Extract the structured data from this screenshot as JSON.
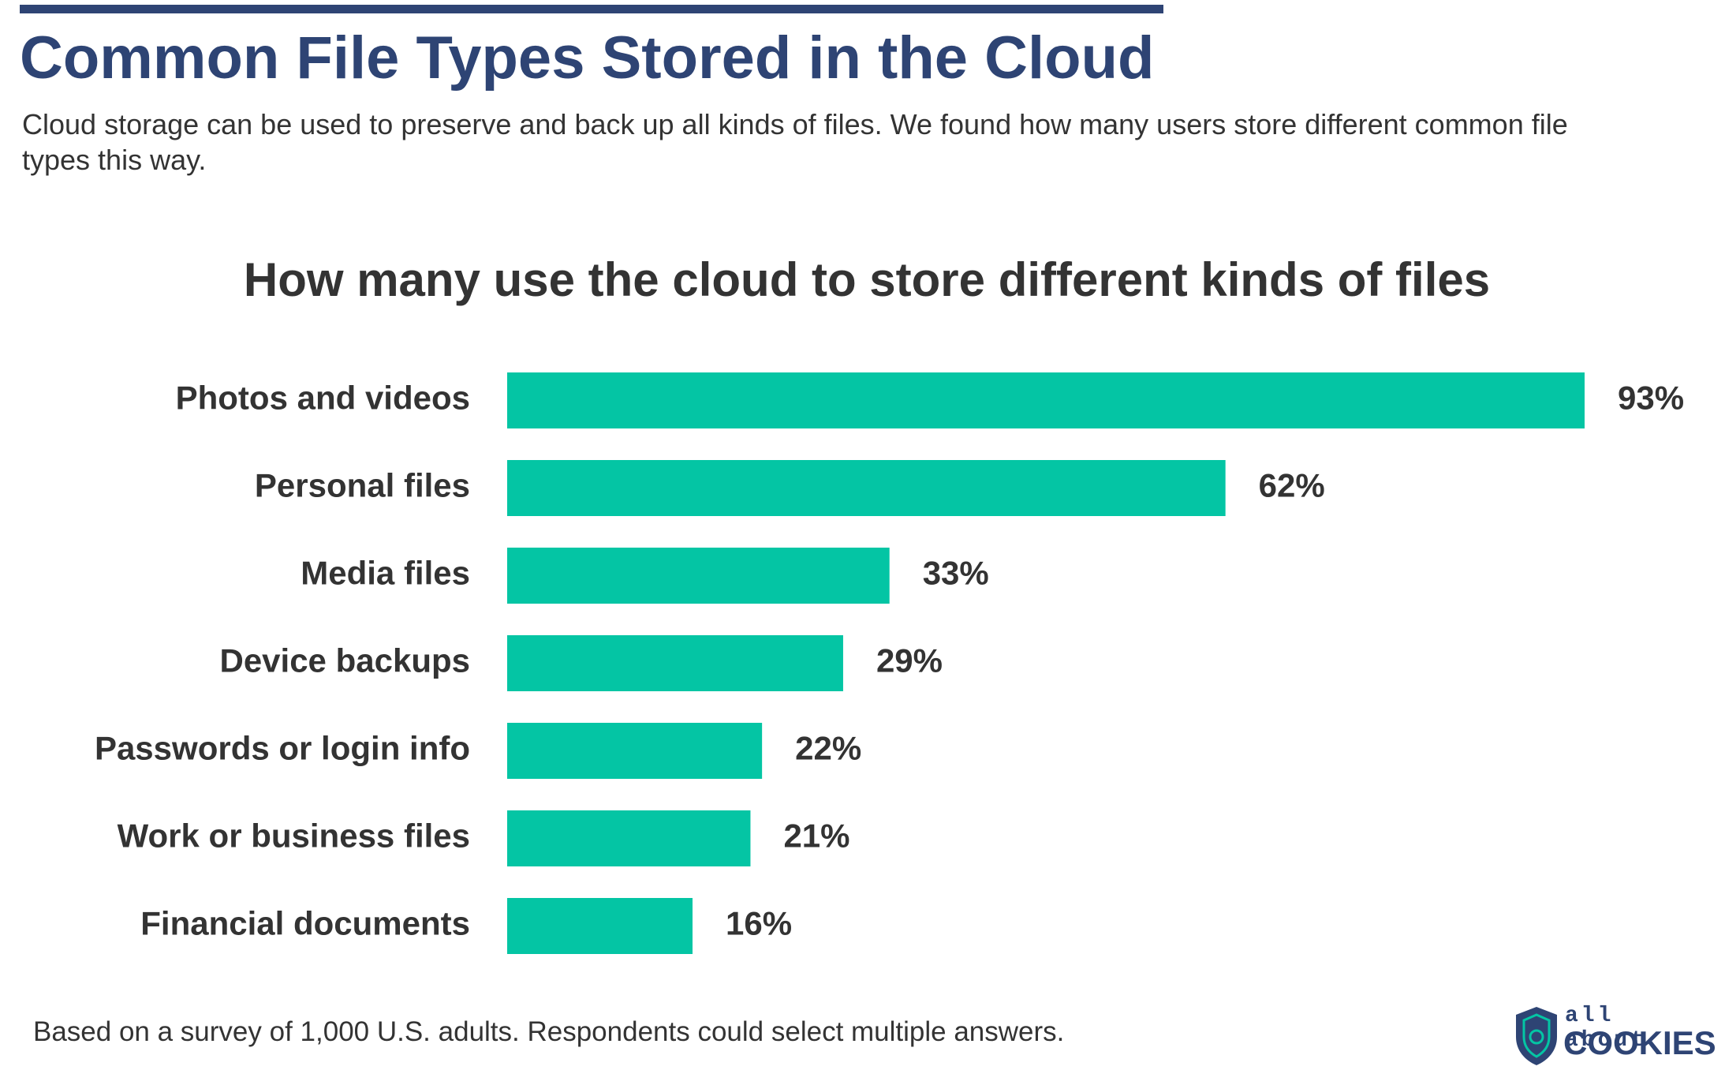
{
  "header": {
    "title": "Common File Types Stored in the Cloud",
    "subtitle": "Cloud storage can be used to preserve and back up all kinds of files. We found how many users store different common file types this way."
  },
  "chart_data": {
    "type": "bar",
    "orientation": "horizontal",
    "title": "How many use the cloud to store different kinds of files",
    "categories": [
      "Photos and videos",
      "Personal files",
      "Media files",
      "Device backups",
      "Passwords or login info",
      "Work or business files",
      "Financial documents"
    ],
    "values": [
      93,
      62,
      33,
      29,
      22,
      21,
      16
    ],
    "value_labels": [
      "93%",
      "62%",
      "33%",
      "29%",
      "22%",
      "21%",
      "16%"
    ],
    "color": "#04c5a4"
  },
  "footer": {
    "note": "Based on a survey of 1,000 U.S. adults. Respondents could select multiple answers."
  },
  "logo": {
    "line1": "all about",
    "line2": "COOKIES"
  }
}
